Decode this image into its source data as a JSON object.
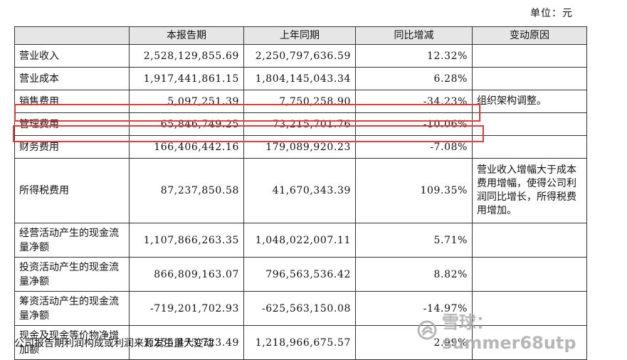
{
  "unit_label": "单位：元",
  "headers": [
    "",
    "本报告期",
    "上年同期",
    "同比增减",
    "变动原因"
  ],
  "rows": [
    {
      "item": "营业收入",
      "current": "2,528,129,855.69",
      "prior": "2,250,797,636.59",
      "change": "12.32%",
      "reason": ""
    },
    {
      "item": "营业成本",
      "current": "1,917,441,861.15",
      "prior": "1,804,145,043.34",
      "change": "6.28%",
      "reason": ""
    },
    {
      "item": "销售费用",
      "current": "5,097,251.39",
      "prior": "7,750,258.90",
      "change": "-34.23%",
      "reason": "组织架构调整。"
    },
    {
      "item": "管理费用",
      "current": "65,846,749.25",
      "prior": "73,215,701.76",
      "change": "-10.06%",
      "reason": ""
    },
    {
      "item": "财务费用",
      "current": "166,406,442.16",
      "prior": "179,089,920.23",
      "change": "-7.08%",
      "reason": ""
    },
    {
      "item": "所得税费用",
      "current": "87,237,850.58",
      "prior": "41,670,343.39",
      "change": "109.35%",
      "reason": "营业收入增幅大于成本费用增幅，使得公司利润同比增长，所得税费用增加。"
    },
    {
      "item": "经营活动产生的现金流量净额",
      "current": "1,107,866,263.35",
      "prior": "1,048,022,007.11",
      "change": "5.71%",
      "reason": ""
    },
    {
      "item": "投资活动产生的现金流量净额",
      "current": "866,809,163.07",
      "prior": "796,563,536.42",
      "change": "8.82%",
      "reason": ""
    },
    {
      "item": "筹资活动产生的现金流量净额",
      "current": "-719,201,702.93",
      "prior": "-625,563,150.08",
      "change": "-14.97%",
      "reason": ""
    },
    {
      "item": "现金及现金等价物净增加额",
      "current": "1,255,473,723.49",
      "prior": "1,218,966,675.57",
      "change": "2.99%",
      "reason": ""
    }
  ],
  "footer_text": "公司报告期利润构成或利润来源发生重大变动",
  "watermark_text": "雪球：summer68utp",
  "highlight_color": "#e23b3b"
}
